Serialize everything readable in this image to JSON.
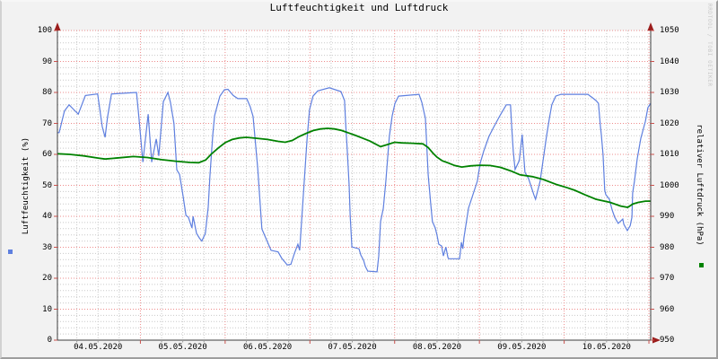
{
  "title": "Luftfeuchtigkeit und Luftdruck",
  "watermark": "RRDTOOL / TOBI OETIKER",
  "frame": {
    "background": "#f2f2f2",
    "canvas": "#ffffff",
    "border_dark": "#9e9e9e",
    "border_light": "#d2d2d2"
  },
  "legend": [
    {
      "series": "Luftfeuchtigkeit",
      "marker": "square",
      "color": "#5e7fdf",
      "position": "left"
    },
    {
      "series": "relativer Luftdruck",
      "marker": "square",
      "color": "#008200",
      "position": "right"
    }
  ],
  "chart_data": {
    "type": "line",
    "title": "Luftfeuchtigkeit und Luftdruck",
    "grid": {
      "minor_color": "#c9c9c9",
      "major_color": "#ee8c8c",
      "axis_color": "#3c3c3c",
      "arrow_color": "#9b1d1c",
      "tick_color": "#c9514d",
      "grid_on": true
    },
    "x_axis": {
      "tick_labels": [
        "04.05.2020",
        "05.05.2020",
        "06.05.2020",
        "07.05.2020",
        "08.05.2020",
        "09.05.2020",
        "10.05.2020"
      ],
      "label_center_hours": [
        12,
        36,
        60,
        84,
        108,
        132,
        156
      ],
      "domain_hours": [
        0.5,
        168.5
      ],
      "minor_step_hours": 6,
      "major_step_hours": 24
    },
    "y_left": {
      "label": "Luftfeuchtigkeit (%)",
      "min": 0,
      "max": 100,
      "tick_step": 10,
      "minor_step": 2,
      "tick_labels": [
        "0",
        "10",
        "20",
        "30",
        "40",
        "50",
        "60",
        "70",
        "80",
        "90",
        "100"
      ]
    },
    "y_right": {
      "label": "relativer Luftdruck (hPa)",
      "min": 950,
      "max": 1050,
      "tick_step": 10,
      "minor_step": 2,
      "tick_labels": [
        "950",
        "960",
        "970",
        "980",
        "990",
        "1000",
        "1010",
        "1020",
        "1030",
        "1040",
        "1050"
      ]
    },
    "series": [
      {
        "name": "Luftfeuchtigkeit",
        "unit": "%",
        "axis": "left",
        "color": "#5e7fdf",
        "width": 1.2,
        "points": [
          [
            0.5,
            67
          ],
          [
            1,
            67
          ],
          [
            2.5,
            74
          ],
          [
            3.8,
            76
          ],
          [
            5.1,
            74.5
          ],
          [
            6.4,
            73
          ],
          [
            8.4,
            79
          ],
          [
            11.9,
            79.5
          ],
          [
            13.2,
            69
          ],
          [
            14,
            65.5
          ],
          [
            14.7,
            72
          ],
          [
            15.8,
            79.5
          ],
          [
            22.9,
            80
          ],
          [
            23.6,
            71.5
          ],
          [
            24.7,
            57.5
          ],
          [
            26.2,
            73
          ],
          [
            27.2,
            57.5
          ],
          [
            28.5,
            65
          ],
          [
            29.2,
            59.5
          ],
          [
            30.5,
            77
          ],
          [
            31.8,
            80
          ],
          [
            32.5,
            76.8
          ],
          [
            33.5,
            70
          ],
          [
            34.3,
            55
          ],
          [
            35.1,
            53.5
          ],
          [
            36.1,
            46.5
          ],
          [
            36.9,
            40.3
          ],
          [
            37.6,
            39.7
          ],
          [
            38.6,
            36.2
          ],
          [
            38.9,
            40
          ],
          [
            39.9,
            34.5
          ],
          [
            40.7,
            33
          ],
          [
            41.4,
            32
          ],
          [
            42.4,
            34.5
          ],
          [
            43.2,
            43
          ],
          [
            43.7,
            53
          ],
          [
            44.5,
            66.4
          ],
          [
            45,
            72.5
          ],
          [
            45.7,
            75.4
          ],
          [
            46.5,
            78.8
          ],
          [
            47.8,
            80.9
          ],
          [
            48.8,
            81
          ],
          [
            50.3,
            79
          ],
          [
            51.6,
            78
          ],
          [
            54.1,
            78
          ],
          [
            55.1,
            75.4
          ],
          [
            55.9,
            72.2
          ],
          [
            57.2,
            55.7
          ],
          [
            58.4,
            35.9
          ],
          [
            61,
            29
          ],
          [
            63,
            28.5
          ],
          [
            64,
            26.5
          ],
          [
            65.6,
            24.3
          ],
          [
            66.6,
            24.5
          ],
          [
            67.6,
            28
          ],
          [
            68.6,
            31
          ],
          [
            69.1,
            29
          ],
          [
            69.9,
            42.6
          ],
          [
            70.4,
            51.3
          ],
          [
            71.2,
            65.2
          ],
          [
            71.9,
            74.5
          ],
          [
            72.9,
            78.8
          ],
          [
            74.2,
            80.5
          ],
          [
            77.5,
            81.5
          ],
          [
            80.8,
            80.3
          ],
          [
            81.8,
            77.4
          ],
          [
            82.1,
            70.7
          ],
          [
            82.6,
            60.9
          ],
          [
            83.1,
            50
          ],
          [
            83.4,
            40
          ],
          [
            83.9,
            30.1
          ],
          [
            85.9,
            29.5
          ],
          [
            86.4,
            27.5
          ],
          [
            87.2,
            25.8
          ],
          [
            87.7,
            23.8
          ],
          [
            88.4,
            22.3
          ],
          [
            91,
            22.1
          ],
          [
            91.5,
            27.2
          ],
          [
            92,
            38.3
          ],
          [
            92.8,
            42.6
          ],
          [
            93.5,
            51.3
          ],
          [
            94.5,
            65.8
          ],
          [
            95.3,
            72.5
          ],
          [
            96.1,
            76.5
          ],
          [
            97.1,
            78.8
          ],
          [
            102.9,
            79.4
          ],
          [
            103.7,
            76.8
          ],
          [
            104.7,
            71.6
          ],
          [
            105,
            65.2
          ],
          [
            105.5,
            53.3
          ],
          [
            106.2,
            44.1
          ],
          [
            106.7,
            38.3
          ],
          [
            107.5,
            36.2
          ],
          [
            108,
            33.9
          ],
          [
            108.5,
            31
          ],
          [
            109.3,
            30.4
          ],
          [
            109.8,
            27.2
          ],
          [
            110.5,
            30.1
          ],
          [
            111.1,
            26.7
          ],
          [
            111.3,
            26.3
          ],
          [
            114.4,
            26.3
          ],
          [
            114.9,
            31.6
          ],
          [
            115.3,
            29.5
          ],
          [
            115.6,
            33
          ],
          [
            116.9,
            42.6
          ],
          [
            119.4,
            51.3
          ],
          [
            120.2,
            57.1
          ],
          [
            121.2,
            61
          ],
          [
            122.7,
            65.8
          ],
          [
            124,
            68.7
          ],
          [
            125.8,
            72.5
          ],
          [
            127.6,
            76
          ],
          [
            128.8,
            76
          ],
          [
            129.1,
            69.6
          ],
          [
            129.6,
            60.9
          ],
          [
            130.1,
            55.1
          ],
          [
            131.3,
            58
          ],
          [
            132.1,
            66.4
          ],
          [
            132.9,
            54.2
          ],
          [
            133.9,
            52.2
          ],
          [
            135.4,
            47
          ],
          [
            135.9,
            45.5
          ],
          [
            137.2,
            51.3
          ],
          [
            139,
            65.8
          ],
          [
            139.8,
            71.6
          ],
          [
            140.5,
            76
          ],
          [
            141.6,
            78.8
          ],
          [
            143.1,
            79.4
          ],
          [
            150.7,
            79.4
          ],
          [
            152,
            78.3
          ],
          [
            153,
            77.4
          ],
          [
            153.7,
            76.5
          ],
          [
            154.3,
            68.7
          ],
          [
            154.5,
            66.7
          ],
          [
            155,
            60
          ],
          [
            155.5,
            48.4
          ],
          [
            155.8,
            47
          ],
          [
            156.8,
            45.5
          ],
          [
            157.6,
            42
          ],
          [
            158.3,
            39.7
          ],
          [
            159.3,
            37.7
          ],
          [
            160.6,
            39.1
          ],
          [
            160.9,
            37.4
          ],
          [
            161.9,
            35.4
          ],
          [
            162.7,
            37
          ],
          [
            163.2,
            39.7
          ],
          [
            163.4,
            47.5
          ],
          [
            163.9,
            51.3
          ],
          [
            164.7,
            58.6
          ],
          [
            165.7,
            65.2
          ],
          [
            167,
            70.7
          ],
          [
            167.7,
            75.1
          ],
          [
            168.5,
            76.5
          ]
        ]
      },
      {
        "name": "relativer Luftdruck",
        "unit": "hPa",
        "axis": "right",
        "color": "#008200",
        "width": 1.8,
        "points": [
          [
            0.5,
            1010.2
          ],
          [
            4,
            1010.0
          ],
          [
            8,
            1009.5
          ],
          [
            12,
            1008.8
          ],
          [
            14,
            1008.5
          ],
          [
            18,
            1008.9
          ],
          [
            22,
            1009.3
          ],
          [
            26,
            1009.0
          ],
          [
            30,
            1008.3
          ],
          [
            34,
            1007.8
          ],
          [
            38,
            1007.4
          ],
          [
            40.5,
            1007.3
          ],
          [
            42.5,
            1008.2
          ],
          [
            44,
            1010.0
          ],
          [
            46,
            1012.0
          ],
          [
            48,
            1013.8
          ],
          [
            50,
            1014.8
          ],
          [
            52,
            1015.3
          ],
          [
            54,
            1015.5
          ],
          [
            57,
            1015.2
          ],
          [
            60,
            1014.8
          ],
          [
            63,
            1014.2
          ],
          [
            65,
            1013.9
          ],
          [
            67,
            1014.5
          ],
          [
            69,
            1015.8
          ],
          [
            71,
            1016.8
          ],
          [
            73,
            1017.7
          ],
          [
            75,
            1018.2
          ],
          [
            77,
            1018.4
          ],
          [
            79,
            1018.2
          ],
          [
            81,
            1017.7
          ],
          [
            83,
            1016.9
          ],
          [
            85,
            1016.1
          ],
          [
            87,
            1015.2
          ],
          [
            89,
            1014.3
          ],
          [
            90.5,
            1013.4
          ],
          [
            92,
            1012.5
          ],
          [
            94,
            1013.2
          ],
          [
            96,
            1013.9
          ],
          [
            98,
            1013.7
          ],
          [
            101,
            1013.6
          ],
          [
            104,
            1013.4
          ],
          [
            105.5,
            1012.2
          ],
          [
            107,
            1010.2
          ],
          [
            108,
            1009.1
          ],
          [
            109.5,
            1007.9
          ],
          [
            111,
            1007.3
          ],
          [
            113,
            1006.4
          ],
          [
            115,
            1005.9
          ],
          [
            117.5,
            1006.3
          ],
          [
            120,
            1006.5
          ],
          [
            123,
            1006.4
          ],
          [
            126,
            1005.8
          ],
          [
            129,
            1004.6
          ],
          [
            131.5,
            1003.4
          ],
          [
            135,
            1002.8
          ],
          [
            138,
            1001.9
          ],
          [
            142,
            1000.2
          ],
          [
            145,
            999.2
          ],
          [
            147,
            998.4
          ],
          [
            150,
            996.9
          ],
          [
            153,
            995.5
          ],
          [
            157,
            994.5
          ],
          [
            160,
            993.3
          ],
          [
            162,
            992.9
          ],
          [
            163.5,
            994.0
          ],
          [
            165,
            994.5
          ],
          [
            167,
            994.9
          ],
          [
            168.5,
            994.9
          ]
        ]
      }
    ]
  }
}
